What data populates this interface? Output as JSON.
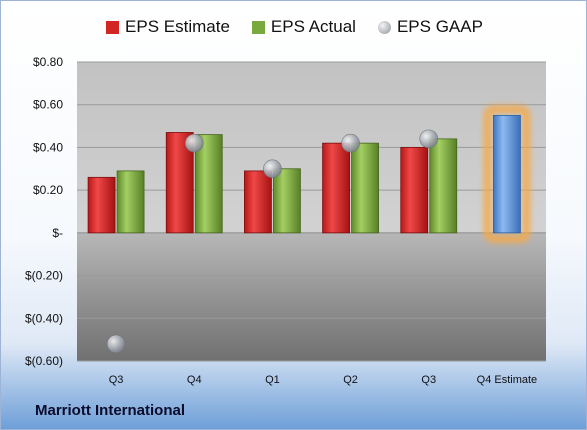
{
  "company": "Marriott International",
  "legend": [
    {
      "label": "EPS Estimate",
      "color": "#d42525",
      "shape": "square"
    },
    {
      "label": "EPS Actual",
      "color": "#79a83c",
      "shape": "square"
    },
    {
      "label": "EPS GAAP",
      "color": "#a9aeb6",
      "shape": "circle"
    }
  ],
  "chart_data": {
    "type": "bar",
    "categories": [
      "Q3",
      "Q4",
      "Q1",
      "Q2",
      "Q3",
      "Q4 Estimate"
    ],
    "series": [
      {
        "name": "EPS Estimate",
        "type": "bar",
        "color": "#d42525",
        "values": [
          0.26,
          0.47,
          0.29,
          0.42,
          0.4,
          null
        ]
      },
      {
        "name": "EPS Actual",
        "type": "bar",
        "color": "#79a83c",
        "values": [
          0.29,
          0.46,
          0.3,
          0.42,
          0.44,
          null
        ]
      },
      {
        "name": "EPS GAAP",
        "type": "scatter",
        "color": "#a9aeb6",
        "values": [
          -0.52,
          0.42,
          0.3,
          0.42,
          0.44,
          null
        ]
      },
      {
        "name": "Q4 Estimate",
        "type": "bar",
        "color": "#5b93d9",
        "highlight": "#f5a94a",
        "values": [
          null,
          null,
          null,
          null,
          null,
          0.55
        ]
      }
    ],
    "ylim": [
      -0.6,
      0.8
    ],
    "yticks": [
      0.8,
      0.6,
      0.4,
      0.2,
      0,
      -0.2,
      -0.4,
      -0.6
    ],
    "ytick_labels": [
      "$0.80",
      "$0.60",
      "$0.40",
      "$0.20",
      "$-",
      "$(0.20)",
      "$(0.40)",
      "$(0.60)"
    ],
    "grid": true,
    "legend_position": "top"
  }
}
